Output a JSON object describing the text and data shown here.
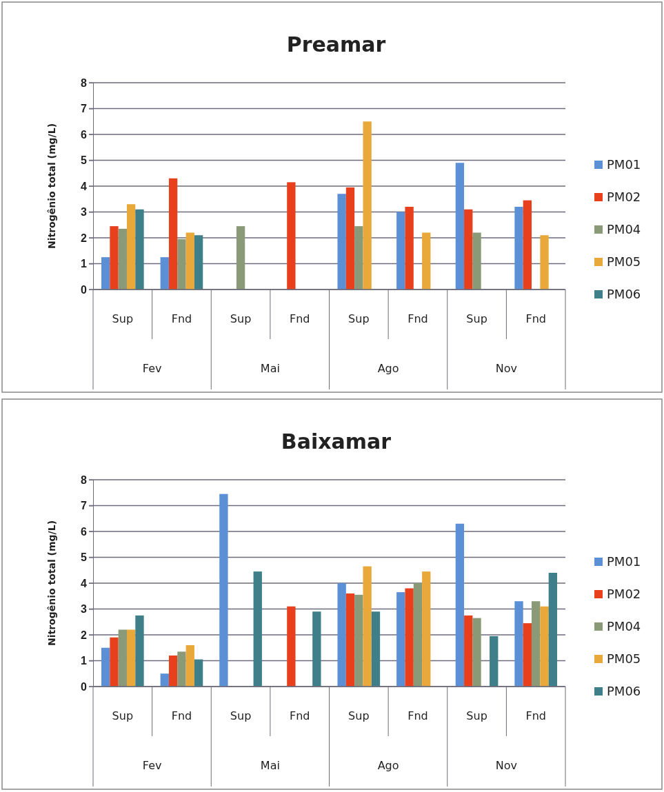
{
  "chart_data": [
    {
      "type": "bar",
      "title": "Preamar",
      "ylabel": "Nitrogênio total (mg/L)",
      "categories": [
        "Sup",
        "Fnd",
        "Sup",
        "Fnd",
        "Sup",
        "Fnd",
        "Sup",
        "Fnd"
      ],
      "annotations": [
        "Fev",
        "Mai",
        "Ago",
        "Nov"
      ],
      "ylim": [
        0,
        8
      ],
      "yticks": [
        0,
        1,
        2,
        3,
        4,
        5,
        6,
        7,
        8
      ],
      "grid": "y",
      "legend": "right",
      "series": [
        {
          "name": "PM01",
          "color": "#5b8fd6",
          "values": [
            1.25,
            1.25,
            null,
            null,
            3.7,
            3.0,
            4.9,
            3.2
          ]
        },
        {
          "name": "PM02",
          "color": "#e8401c",
          "values": [
            2.45,
            4.3,
            null,
            4.15,
            3.95,
            3.2,
            3.1,
            3.45
          ]
        },
        {
          "name": "PM04",
          "color": "#8a9a78",
          "values": [
            2.35,
            1.95,
            2.45,
            null,
            2.45,
            null,
            2.2,
            null
          ]
        },
        {
          "name": "PM05",
          "color": "#e8a93a",
          "values": [
            3.3,
            2.2,
            null,
            null,
            6.5,
            2.2,
            null,
            2.1
          ]
        },
        {
          "name": "PM06",
          "color": "#3e7f8a",
          "values": [
            3.1,
            2.1,
            null,
            null,
            null,
            null,
            null,
            null
          ]
        }
      ]
    },
    {
      "type": "bar",
      "title": "Baixamar",
      "ylabel": "Nitrogênio total (mg/L)",
      "categories": [
        "Sup",
        "Fnd",
        "Sup",
        "Fnd",
        "Sup",
        "Fnd",
        "Sup",
        "Fnd"
      ],
      "annotations": [
        "Fev",
        "Mai",
        "Ago",
        "Nov"
      ],
      "ylim": [
        0,
        8
      ],
      "yticks": [
        0,
        1,
        2,
        3,
        4,
        5,
        6,
        7,
        8
      ],
      "grid": "y",
      "legend": "right",
      "series": [
        {
          "name": "PM01",
          "color": "#5b8fd6",
          "values": [
            1.5,
            0.5,
            7.45,
            null,
            4.0,
            3.65,
            6.3,
            3.3
          ]
        },
        {
          "name": "PM02",
          "color": "#e8401c",
          "values": [
            1.9,
            1.2,
            null,
            3.1,
            3.6,
            3.8,
            2.75,
            2.45
          ]
        },
        {
          "name": "PM04",
          "color": "#8a9a78",
          "values": [
            2.2,
            1.35,
            null,
            null,
            3.55,
            4.0,
            2.65,
            3.3
          ]
        },
        {
          "name": "PM05",
          "color": "#e8a93a",
          "values": [
            2.2,
            1.6,
            null,
            null,
            4.65,
            4.45,
            null,
            3.1
          ]
        },
        {
          "name": "PM06",
          "color": "#3e7f8a",
          "values": [
            2.75,
            1.05,
            4.45,
            2.9,
            2.9,
            null,
            1.95,
            4.4
          ]
        }
      ]
    }
  ]
}
